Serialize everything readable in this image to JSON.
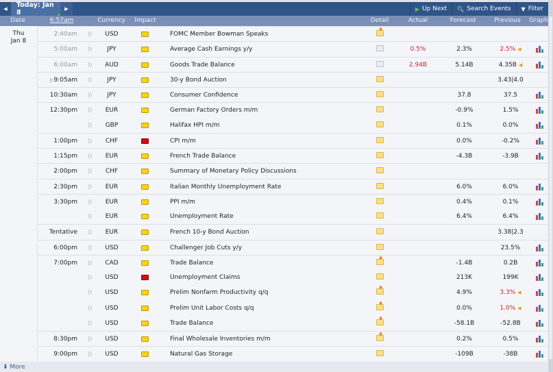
{
  "toolbar": {
    "today_label": "Today: Jan 8",
    "up_next": "Up Next",
    "search": "Search Events",
    "filter": "Filter"
  },
  "header": {
    "date": "Date",
    "time": "6:57am",
    "currency": "Currency",
    "impact": "Impact",
    "detail": "Detail",
    "actual": "Actual",
    "forecast": "Forecast",
    "previous": "Previous",
    "graph": "Graph"
  },
  "day": {
    "weekday": "Thu",
    "date": "Jan 8"
  },
  "colors": {
    "high_impact": "#cc1111",
    "medium_impact": "#f5d31a",
    "worse": "#c0282d"
  },
  "rows": [
    {
      "time": "2:40am",
      "past": true,
      "currency": "USD",
      "impact": "yellow",
      "event": "FOMC Member Bowman Speaks",
      "detail": "star",
      "actual": "",
      "forecast": "",
      "previous": "",
      "graph": false
    },
    {
      "time": "5:00am",
      "past": true,
      "currency": "JPY",
      "impact": "yellow",
      "event": "Average Cash Earnings y/y",
      "detail": "open",
      "actual": "0.5%",
      "forecast": "2.3%",
      "previous": "2.5%",
      "prev_red": true,
      "revised": true,
      "graph": true
    },
    {
      "time": "6:00am",
      "past": true,
      "currency": "AUD",
      "impact": "yellow",
      "event": "Goods Trade Balance",
      "detail": "open",
      "actual": "2.94B",
      "forecast": "5.14B",
      "previous": "4.35B",
      "revised": true,
      "graph": true
    },
    {
      "time": "9:05am",
      "next": true,
      "currency": "JPY",
      "impact": "yellow",
      "event": "30-y Bond Auction",
      "detail": "plain",
      "actual": "",
      "forecast": "",
      "previous": "3.43|4.0",
      "graph": false
    },
    {
      "time": "10:30am",
      "currency": "JPY",
      "impact": "yellow",
      "event": "Consumer Confidence",
      "detail": "plain",
      "actual": "",
      "forecast": "37.8",
      "previous": "37.5",
      "graph": true
    },
    {
      "time": "12:30pm",
      "currency": "EUR",
      "impact": "yellow",
      "event": "German Factory Orders m/m",
      "detail": "plain",
      "actual": "",
      "forecast": "-0.9%",
      "previous": "1.5%",
      "graph": true
    },
    {
      "time": "",
      "currency": "GBP",
      "impact": "yellow",
      "event": "Halifax HPI m/m",
      "detail": "plain",
      "actual": "",
      "forecast": "0.1%",
      "previous": "0.0%",
      "graph": true
    },
    {
      "time": "1:00pm",
      "currency": "CHF",
      "impact": "red",
      "event": "CPI m/m",
      "detail": "plain",
      "actual": "",
      "forecast": "0.0%",
      "previous": "-0.2%",
      "graph": true
    },
    {
      "time": "1:15pm",
      "currency": "EUR",
      "impact": "yellow",
      "event": "French Trade Balance",
      "detail": "plain",
      "actual": "",
      "forecast": "-4.3B",
      "previous": "-3.9B",
      "graph": true
    },
    {
      "time": "2:00pm",
      "currency": "CHF",
      "impact": "yellow",
      "event": "Summary of Monetary Policy Discussions",
      "detail": "plain",
      "actual": "",
      "forecast": "",
      "previous": "",
      "graph": false
    },
    {
      "time": "2:30pm",
      "currency": "EUR",
      "impact": "yellow",
      "event": "Italian Monthly Unemployment Rate",
      "detail": "plain",
      "actual": "",
      "forecast": "6.0%",
      "previous": "6.0%",
      "graph": true
    },
    {
      "time": "3:30pm",
      "currency": "EUR",
      "impact": "yellow",
      "event": "PPI m/m",
      "detail": "plain",
      "actual": "",
      "forecast": "0.4%",
      "previous": "0.1%",
      "graph": true
    },
    {
      "time": "",
      "currency": "EUR",
      "impact": "yellow",
      "event": "Unemployment Rate",
      "detail": "plain",
      "actual": "",
      "forecast": "6.4%",
      "previous": "6.4%",
      "graph": true
    },
    {
      "time": "Tentative",
      "currency": "EUR",
      "impact": "yellow",
      "event": "French 10-y Bond Auction",
      "detail": "plain",
      "actual": "",
      "forecast": "",
      "previous": "3.38|2.3",
      "graph": false
    },
    {
      "time": "6:00pm",
      "currency": "USD",
      "impact": "yellow",
      "event": "Challenger Job Cuts y/y",
      "detail": "plain",
      "actual": "",
      "forecast": "",
      "previous": "23.5%",
      "graph": true
    },
    {
      "time": "7:00pm",
      "currency": "CAD",
      "impact": "yellow",
      "event": "Trade Balance",
      "detail": "star",
      "actual": "",
      "forecast": "-1.4B",
      "previous": "0.2B",
      "graph": true
    },
    {
      "time": "",
      "currency": "USD",
      "impact": "red",
      "event": "Unemployment Claims",
      "detail": "plain",
      "actual": "",
      "forecast": "213K",
      "previous": "199K",
      "graph": true
    },
    {
      "time": "",
      "currency": "USD",
      "impact": "yellow",
      "event": "Prelim Nonfarm Productivity q/q",
      "detail": "star",
      "actual": "",
      "forecast": "4.9%",
      "previous": "3.3%",
      "prev_red": true,
      "revised": true,
      "graph": true
    },
    {
      "time": "",
      "currency": "USD",
      "impact": "yellow",
      "event": "Prelim Unit Labor Costs q/q",
      "detail": "star",
      "actual": "",
      "forecast": "0.0%",
      "previous": "1.0%",
      "prev_red": true,
      "revised": true,
      "graph": true
    },
    {
      "time": "",
      "currency": "USD",
      "impact": "yellow",
      "event": "Trade Balance",
      "detail": "star",
      "actual": "",
      "forecast": "-58.1B",
      "previous": "-52.8B",
      "graph": true
    },
    {
      "time": "8:30pm",
      "currency": "USD",
      "impact": "yellow",
      "event": "Final Wholesale Inventories m/m",
      "detail": "star",
      "actual": "",
      "forecast": "0.2%",
      "previous": "0.5%",
      "graph": true
    },
    {
      "time": "9:00pm",
      "currency": "USD",
      "impact": "yellow",
      "event": "Natural Gas Storage",
      "detail": "plain",
      "actual": "",
      "forecast": "-109B",
      "previous": "-38B",
      "graph": true
    }
  ],
  "footer": {
    "more": "More"
  }
}
